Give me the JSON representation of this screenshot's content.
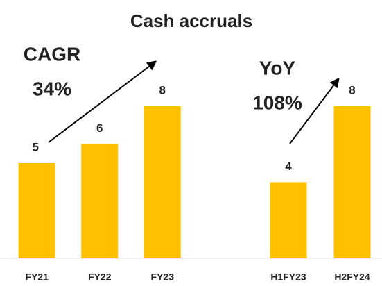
{
  "chart_data": [
    {
      "type": "bar",
      "title": "Cash accruals",
      "annotations": [
        "CAGR",
        "34%"
      ],
      "categories": [
        "FY21",
        "FY22",
        "FY23"
      ],
      "values": [
        5,
        6,
        8
      ],
      "color": "#ffc000",
      "ylim": [
        0,
        10
      ]
    },
    {
      "type": "bar",
      "annotations": [
        "YoY",
        "108%"
      ],
      "categories": [
        "H1FY23",
        "H2FY24"
      ],
      "values": [
        4,
        8
      ],
      "color": "#ffc000",
      "ylim": [
        0,
        10
      ]
    }
  ]
}
